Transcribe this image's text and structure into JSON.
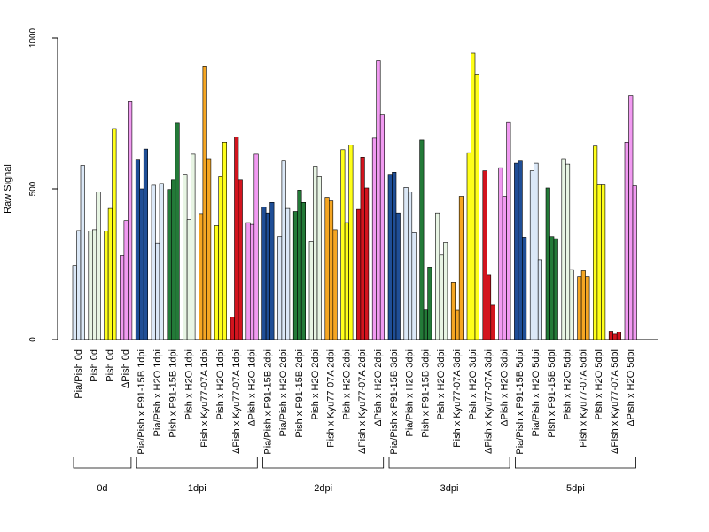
{
  "chart_data": {
    "type": "bar",
    "ylabel": "Raw Signal",
    "ylim": [
      0,
      1000
    ],
    "yticks": [
      0,
      500,
      1000
    ],
    "grid": false,
    "legend": "none",
    "colors": {
      "lightblue": "#dbe8f7",
      "darkblue": "#1f4e96",
      "darkgreen": "#237a38",
      "lightgreen": "#e8f5e4",
      "orange": "#f5a623",
      "yellow": "#ffff1a",
      "red": "#d3141e",
      "violet": "#f19af1"
    },
    "groups": [
      {
        "label": "0d",
        "categories": [
          {
            "label": "Pia/Pish 0d",
            "color": "lightblue",
            "values": [
              245,
              362,
              578
            ]
          },
          {
            "label": "Pish 0d",
            "color": "lightgreen",
            "values": [
              360,
              365,
              490
            ]
          },
          {
            "label": "Pish 0d",
            "color": "yellow",
            "values": [
              360,
              435,
              700
            ]
          },
          {
            "label": "ΔPish 0d",
            "color": "violet",
            "values": [
              278,
              395,
              790
            ]
          }
        ]
      },
      {
        "label": "1dpi",
        "categories": [
          {
            "label": "Pia/Pish x P91-15B 1dpi",
            "color": "darkblue",
            "values": [
              598,
              500,
              632
            ]
          },
          {
            "label": "Pia/Pish x H2O 1dpi",
            "color": "lightblue",
            "values": [
              512,
              320,
              518
            ]
          },
          {
            "label": "Pish x P91-15B 1dpi",
            "color": "darkgreen",
            "values": [
              498,
              530,
              718
            ]
          },
          {
            "label": "Pish x H2O 1dpi",
            "color": "lightgreen",
            "values": [
              548,
              398,
              615
            ]
          },
          {
            "label": "Pish x Kyu77-07A 1dpi",
            "color": "orange",
            "values": [
              418,
              905,
              600
            ]
          },
          {
            "label": "Pish x H2O 1dpi",
            "color": "yellow",
            "values": [
              378,
              540,
              655
            ]
          },
          {
            "label": "ΔPish x Kyu77-07A 1dpi",
            "color": "red",
            "values": [
              75,
              672,
              530
            ]
          },
          {
            "label": "ΔPish x H2O 1dpi",
            "color": "violet",
            "values": [
              388,
              382,
              615
            ]
          }
        ]
      },
      {
        "label": "2dpi",
        "categories": [
          {
            "label": "Pia/Pish x P91-15B 2dpi",
            "color": "darkblue",
            "values": [
              440,
              420,
              455
            ]
          },
          {
            "label": "Pia/Pish x H2O 2dpi",
            "color": "lightblue",
            "values": [
              342,
              592,
              435
            ]
          },
          {
            "label": "Pish x P91-15B 2dpi",
            "color": "darkgreen",
            "values": [
              425,
              496,
              455
            ]
          },
          {
            "label": "Pish x H2O 2dpi",
            "color": "lightgreen",
            "values": [
              325,
              575,
              540
            ]
          },
          {
            "label": "Pish x Kyu77-07A 2dpi",
            "color": "orange",
            "values": [
              472,
              460,
              365
            ]
          },
          {
            "label": "Pish x H2O 2dpi",
            "color": "yellow",
            "values": [
              630,
              388,
              645
            ]
          },
          {
            "label": "ΔPish x Kyu77-07A 2dpi",
            "color": "red",
            "values": [
              432,
              605,
              503
            ]
          },
          {
            "label": "ΔPish x H2O 2dpi",
            "color": "violet",
            "values": [
              668,
              925,
              745
            ]
          }
        ]
      },
      {
        "label": "3dpi",
        "categories": [
          {
            "label": "Pia/Pish x P91-15B 3dpi",
            "color": "darkblue",
            "values": [
              548,
              555,
              420
            ]
          },
          {
            "label": "Pia/Pish x H2O 3dpi",
            "color": "lightblue",
            "values": [
              505,
              490,
              355
            ]
          },
          {
            "label": "Pish x P91-15B 3dpi",
            "color": "darkgreen",
            "values": [
              662,
              98,
              240
            ]
          },
          {
            "label": "Pish x H2O 3dpi",
            "color": "lightgreen",
            "values": [
              420,
              280,
              322
            ]
          },
          {
            "label": "Pish x Kyu77-07A 3dpi",
            "color": "orange",
            "values": [
              190,
              97,
              475
            ]
          },
          {
            "label": "Pish x H2O 3dpi",
            "color": "yellow",
            "values": [
              620,
              950,
              878
            ]
          },
          {
            "label": "ΔPish x Kyu77-07A 3dpi",
            "color": "red",
            "values": [
              560,
              215,
              115
            ]
          },
          {
            "label": "ΔPish x H2O 3dpi",
            "color": "violet",
            "values": [
              570,
              475,
              720
            ]
          }
        ]
      },
      {
        "label": "5dpi",
        "categories": [
          {
            "label": "Pia/Pish x P91-15B 5dpi",
            "color": "darkblue",
            "values": [
              585,
              592,
              340
            ]
          },
          {
            "label": "Pia/Pish x H2O 5dpi",
            "color": "lightblue",
            "values": [
              560,
              585,
              265
            ]
          },
          {
            "label": "Pish x P91-15B 5dpi",
            "color": "darkgreen",
            "values": [
              503,
              342,
              335
            ]
          },
          {
            "label": "Pish x H2O 5dpi",
            "color": "lightgreen",
            "values": [
              600,
              582,
              232
            ]
          },
          {
            "label": "Pish x Kyu77-07A 5dpi",
            "color": "orange",
            "values": [
              210,
              228,
              210
            ]
          },
          {
            "label": "Pish x H2O 5dpi",
            "color": "yellow",
            "values": [
              642,
              513,
              513
            ]
          },
          {
            "label": "ΔPish x Kyu77-07A 5dpi",
            "color": "red",
            "values": [
              28,
              18,
              25
            ]
          },
          {
            "label": "ΔPish x H2O 5dpi",
            "color": "violet",
            "values": [
              655,
              810,
              510
            ]
          }
        ]
      }
    ]
  }
}
